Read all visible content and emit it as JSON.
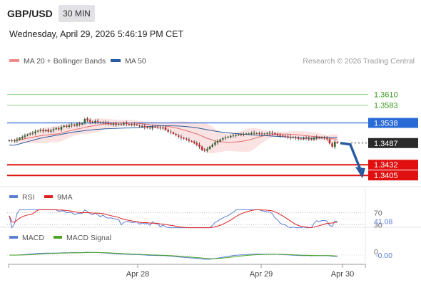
{
  "header": {
    "symbol": "GBP/USD",
    "timeframe": "30 MIN",
    "datetime": "Wednesday, April 29, 2026 5:46:19 PM CET",
    "credit": "Research © 2026 Trading Central"
  },
  "legend": {
    "main": [
      {
        "label": "MA 20 + Bollinger Bands",
        "color": "#f08c8c"
      },
      {
        "label": "MA 50",
        "color": "#2a5a9e"
      }
    ],
    "rsi": [
      {
        "label": "RSI",
        "color": "#5b7fd6"
      },
      {
        "label": "9MA",
        "color": "#e02020"
      }
    ],
    "macd": [
      {
        "label": "MACD",
        "color": "#5b7fd6"
      },
      {
        "label": "MACD Signal",
        "color": "#4aa520"
      }
    ]
  },
  "chart_data": [
    {
      "type": "candlestick",
      "title": "GBP/USD 30 MIN",
      "x_tick_labels": [
        "Apr 28",
        "Apr 29",
        "Apr 30"
      ],
      "price_levels": [
        {
          "value": 1.361,
          "label": "1.3610",
          "style": "resistance-green"
        },
        {
          "value": 1.3583,
          "label": "1.3583",
          "style": "resistance-green"
        },
        {
          "value": 1.3538,
          "label": "1.3538",
          "style": "pivot-blue"
        },
        {
          "value": 1.3487,
          "label": "1.3487",
          "style": "last-price"
        },
        {
          "value": 1.3432,
          "label": "1.3432",
          "style": "support-red"
        },
        {
          "value": 1.3405,
          "label": "1.3405",
          "style": "support-red"
        }
      ],
      "close": [
        1.3494,
        1.3492,
        1.3493,
        1.3496,
        1.35,
        1.3503,
        1.3506,
        1.3509,
        1.3511,
        1.3513,
        1.3516,
        1.3518,
        1.352,
        1.3517,
        1.352,
        1.3516,
        1.3519,
        1.3522,
        1.3525,
        1.3522,
        1.3528,
        1.3531,
        1.3528,
        1.3532,
        1.3534,
        1.3531,
        1.3536,
        1.3534,
        1.3537,
        1.3548,
        1.3545,
        1.3541,
        1.3539,
        1.3543,
        1.3541,
        1.3538,
        1.354,
        1.3537,
        1.3536,
        1.3534,
        1.3536,
        1.3533,
        1.3535,
        1.3534,
        1.3537,
        1.3535,
        1.3533,
        1.3535,
        1.3534,
        1.3532,
        1.353,
        1.353,
        1.3527,
        1.3526,
        1.3525,
        1.3528,
        1.3527,
        1.3526,
        1.3525,
        1.3526,
        1.352,
        1.3516,
        1.3514,
        1.351,
        1.3507,
        1.3503,
        1.35,
        1.3498,
        1.3496,
        1.3493,
        1.3491,
        1.3487,
        1.3483,
        1.3478,
        1.3469,
        1.3468,
        1.3472,
        1.3478,
        1.3483,
        1.3489,
        1.3491,
        1.3496,
        1.3499,
        1.3501,
        1.3503,
        1.3505,
        1.3506,
        1.3507,
        1.3509,
        1.3508,
        1.351,
        1.3511,
        1.3511,
        1.3512,
        1.3513,
        1.3512,
        1.3511,
        1.351,
        1.3511,
        1.3512,
        1.3513,
        1.3512,
        1.351,
        1.3507,
        1.3505,
        1.3505,
        1.3504,
        1.3502,
        1.3501,
        1.3502,
        1.3499,
        1.3498,
        1.3497,
        1.35,
        1.3499,
        1.3498,
        1.3496,
        1.35,
        1.3502,
        1.35,
        1.3501,
        1.3499,
        1.3497,
        1.3486,
        1.3478,
        1.349,
        1.3487
      ],
      "bollinger_bands": {
        "period": 20
      },
      "ma50": {
        "period": 50
      }
    },
    {
      "type": "line",
      "title": "RSI",
      "series": [
        {
          "name": "RSI"
        },
        {
          "name": "9MA"
        }
      ],
      "levels": [
        70,
        30
      ],
      "last_value": "41.08"
    },
    {
      "type": "line",
      "title": "MACD",
      "series": [
        {
          "name": "MACD"
        },
        {
          "name": "MACD Signal"
        }
      ],
      "level_label": "0",
      "last_value": "-0.00"
    }
  ]
}
